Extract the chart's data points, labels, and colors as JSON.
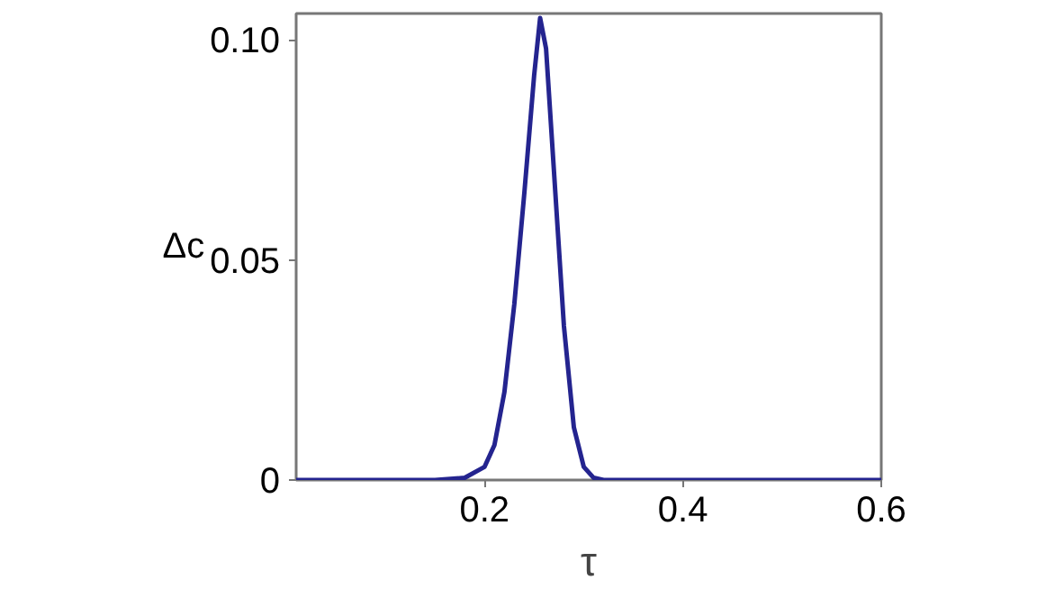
{
  "chart_data": {
    "type": "line",
    "xlabel": "τ",
    "ylabel": "Δc",
    "x": [
      0.01,
      0.15,
      0.18,
      0.2,
      0.21,
      0.22,
      0.23,
      0.24,
      0.25,
      0.256,
      0.262,
      0.27,
      0.28,
      0.29,
      0.3,
      0.31,
      0.32,
      0.6
    ],
    "series": [
      {
        "color": "#24248f",
        "values": [
          0,
          0,
          0.0005,
          0.003,
          0.008,
          0.02,
          0.04,
          0.065,
          0.092,
          0.105,
          0.098,
          0.07,
          0.035,
          0.012,
          0.003,
          0.0005,
          0,
          0
        ]
      }
    ],
    "xlim": [
      0.01,
      0.6
    ],
    "ylim": [
      0,
      0.106
    ],
    "xticks": [
      0.2,
      0.4,
      0.6
    ],
    "yticks": [
      0,
      0.05,
      {
        "value": 0.1,
        "label": "0.10"
      }
    ],
    "grid": false,
    "marker": "none",
    "line_style": "solid"
  }
}
